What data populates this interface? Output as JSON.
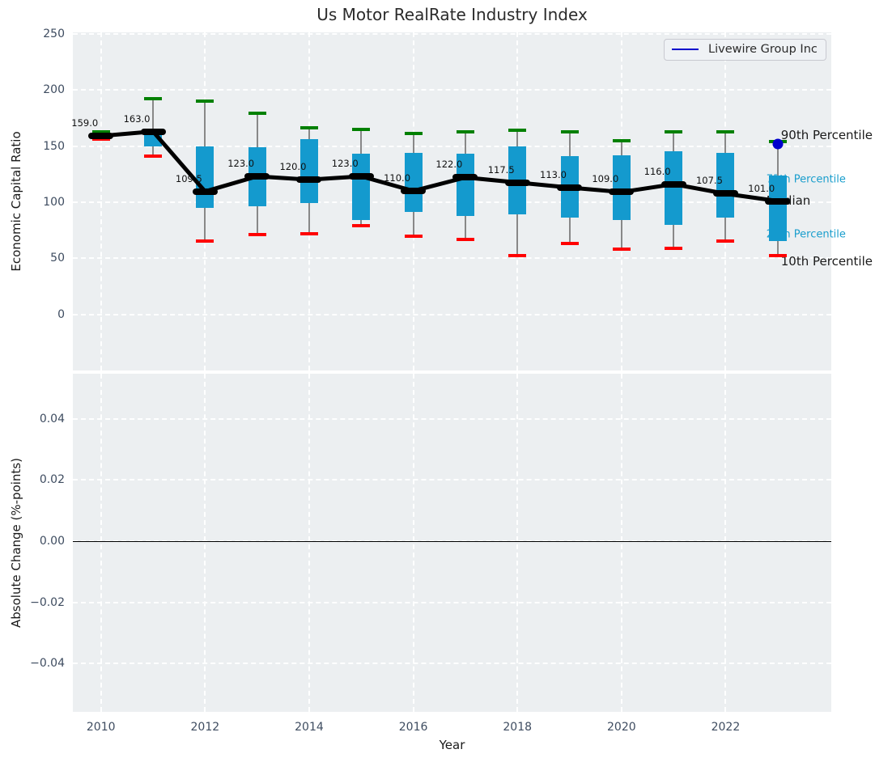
{
  "title": "Us Motor RealRate Industry Index",
  "legend": {
    "label": "Livewire Group Inc",
    "line_color": "#0000cc"
  },
  "colors": {
    "panel_bg": "#eceff1",
    "grid": "#ffffff",
    "box_fill": "#149ace",
    "median": "#000000",
    "p90_cap": "#008000",
    "p10_cap": "#ff0000",
    "company_dot": "#0000cc",
    "tick_label": "#3e4c60",
    "annotation_blue": "#1a9ecd",
    "whisker": "#888888"
  },
  "axes": {
    "top": {
      "ylabel": "Economic Capital Ratio",
      "yticks": [
        {
          "label": "250",
          "value": 250
        },
        {
          "label": "200",
          "value": 200
        },
        {
          "label": "150",
          "value": 150
        },
        {
          "label": "100",
          "value": 100
        },
        {
          "label": "50",
          "value": 50
        },
        {
          "label": "0",
          "value": 0
        }
      ]
    },
    "bottom": {
      "ylabel": "Absolute Change (%-points)",
      "yticks": [
        {
          "label": "0.04",
          "value": 0.04
        },
        {
          "label": "0.02",
          "value": 0.02
        },
        {
          "label": "0.00",
          "value": 0.0
        },
        {
          "label": "−0.02",
          "value": -0.02
        },
        {
          "label": "−0.04",
          "value": -0.04
        }
      ],
      "zero_line_value": 0.0
    },
    "x": {
      "label": "Year",
      "ticks": [
        {
          "label": "2010",
          "value": 2010
        },
        {
          "label": "2012",
          "value": 2012
        },
        {
          "label": "2014",
          "value": 2014
        },
        {
          "label": "2016",
          "value": 2016
        },
        {
          "label": "2018",
          "value": 2018
        },
        {
          "label": "2020",
          "value": 2020
        },
        {
          "label": "2022",
          "value": 2022
        }
      ]
    }
  },
  "chart_data": {
    "type": "boxplot",
    "title": "Us Motor RealRate Industry Index",
    "xlabel": "Year",
    "ylabel_top": "Economic Capital Ratio",
    "ylabel_bottom": "Absolute Change (%-points)",
    "grid": true,
    "legend_position": "upper right",
    "xlim": [
      2009.46,
      2024.03
    ],
    "ylim_top": [
      -50,
      251.3
    ],
    "ylim_bottom": [
      -0.0558,
      0.0547
    ],
    "x": [
      2010,
      2011,
      2012,
      2013,
      2014,
      2015,
      2016,
      2017,
      2018,
      2019,
      2020,
      2021,
      2022,
      2023
    ],
    "median": [
      159,
      163,
      109.5,
      123,
      120,
      123,
      110,
      122,
      117.5,
      113,
      109,
      116,
      107.5,
      101
    ],
    "q1": [
      157,
      150,
      95,
      96,
      99,
      84,
      91,
      88,
      89,
      86,
      84,
      80,
      86,
      65
    ],
    "q3": [
      161,
      165,
      150,
      149,
      156,
      143,
      144,
      143,
      150,
      141,
      142,
      145,
      144,
      124
    ],
    "p10": [
      156,
      141,
      65,
      71,
      72,
      79,
      70,
      67,
      52,
      63,
      58,
      59,
      65,
      52
    ],
    "p90": [
      163,
      192,
      190,
      179,
      166,
      165,
      161,
      163,
      164,
      163,
      155,
      163,
      163,
      154
    ],
    "median_labels": [
      "159.0",
      "163.0",
      "109.5",
      "123.0",
      "120.0",
      "123.0",
      "110.0",
      "122.0",
      "117.5",
      "113.0",
      "109.0",
      "116.0",
      "107.5",
      "101.0"
    ],
    "company_point": {
      "name": "Livewire Group Inc",
      "x": 2023,
      "y": 152
    },
    "annotations": [
      {
        "text": "90th Percentile",
        "value": 160,
        "style": "black",
        "dx": 4
      },
      {
        "text": "75th Percentile",
        "value": 120.3,
        "style": "blue",
        "dx": -14
      },
      {
        "text": "Median",
        "value": 101.4,
        "style": "black",
        "dx": -14
      },
      {
        "text": "25th Percentile",
        "value": 71,
        "style": "blue",
        "dx": -14
      },
      {
        "text": "10th Percentile",
        "value": 47.5,
        "style": "black",
        "dx": 4
      }
    ],
    "bottom_series": {
      "name": "Livewire Group Inc",
      "values": []
    }
  }
}
